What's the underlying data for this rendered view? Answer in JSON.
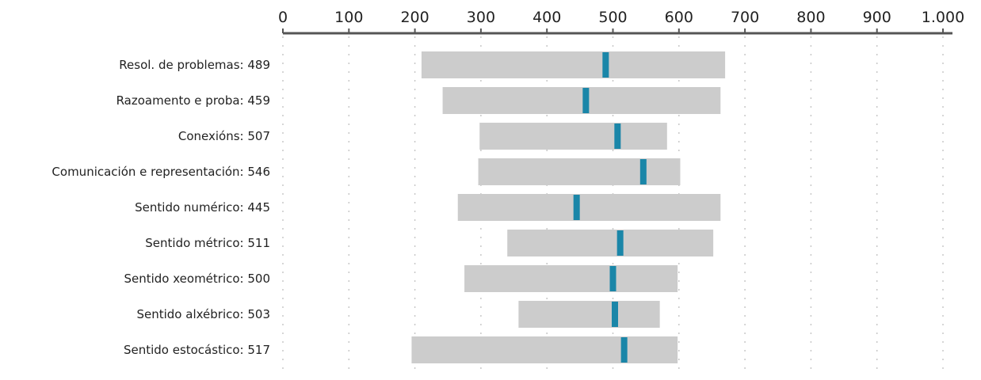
{
  "chart_data": {
    "type": "bar",
    "orientation": "horizontal",
    "xlim": [
      0,
      1000
    ],
    "ticks": [
      0,
      100,
      200,
      300,
      400,
      500,
      600,
      700,
      800,
      900,
      1000
    ],
    "tick_labels": [
      "0",
      "100",
      "200",
      "300",
      "400",
      "500",
      "600",
      "700",
      "800",
      "900",
      "1.000"
    ],
    "axis_position": "top",
    "grid": true,
    "categories": [
      "Resol. de problemas: 489",
      "Razoamento e proba: 459",
      "Conexións: 507",
      "Comunicación e representación: 546",
      "Sentido numérico: 445",
      "Sentido métrico: 511",
      "Sentido xeométrico: 500",
      "Sentido alxébrico: 503",
      "Sentido estocástico: 517"
    ],
    "series": [
      {
        "role": "range",
        "values": [
          [
            210,
            670
          ],
          [
            242,
            663
          ],
          [
            298,
            582
          ],
          [
            296,
            602
          ],
          [
            265,
            663
          ],
          [
            340,
            652
          ],
          [
            275,
            598
          ],
          [
            357,
            571
          ],
          [
            195,
            598
          ]
        ]
      },
      {
        "role": "mean",
        "values": [
          489,
          459,
          507,
          546,
          445,
          511,
          500,
          503,
          517
        ]
      }
    ],
    "colors": {
      "range": "#cccccc",
      "mean": "#1a86a8",
      "axis": "#555555",
      "grid": "#c8c8c8"
    }
  }
}
